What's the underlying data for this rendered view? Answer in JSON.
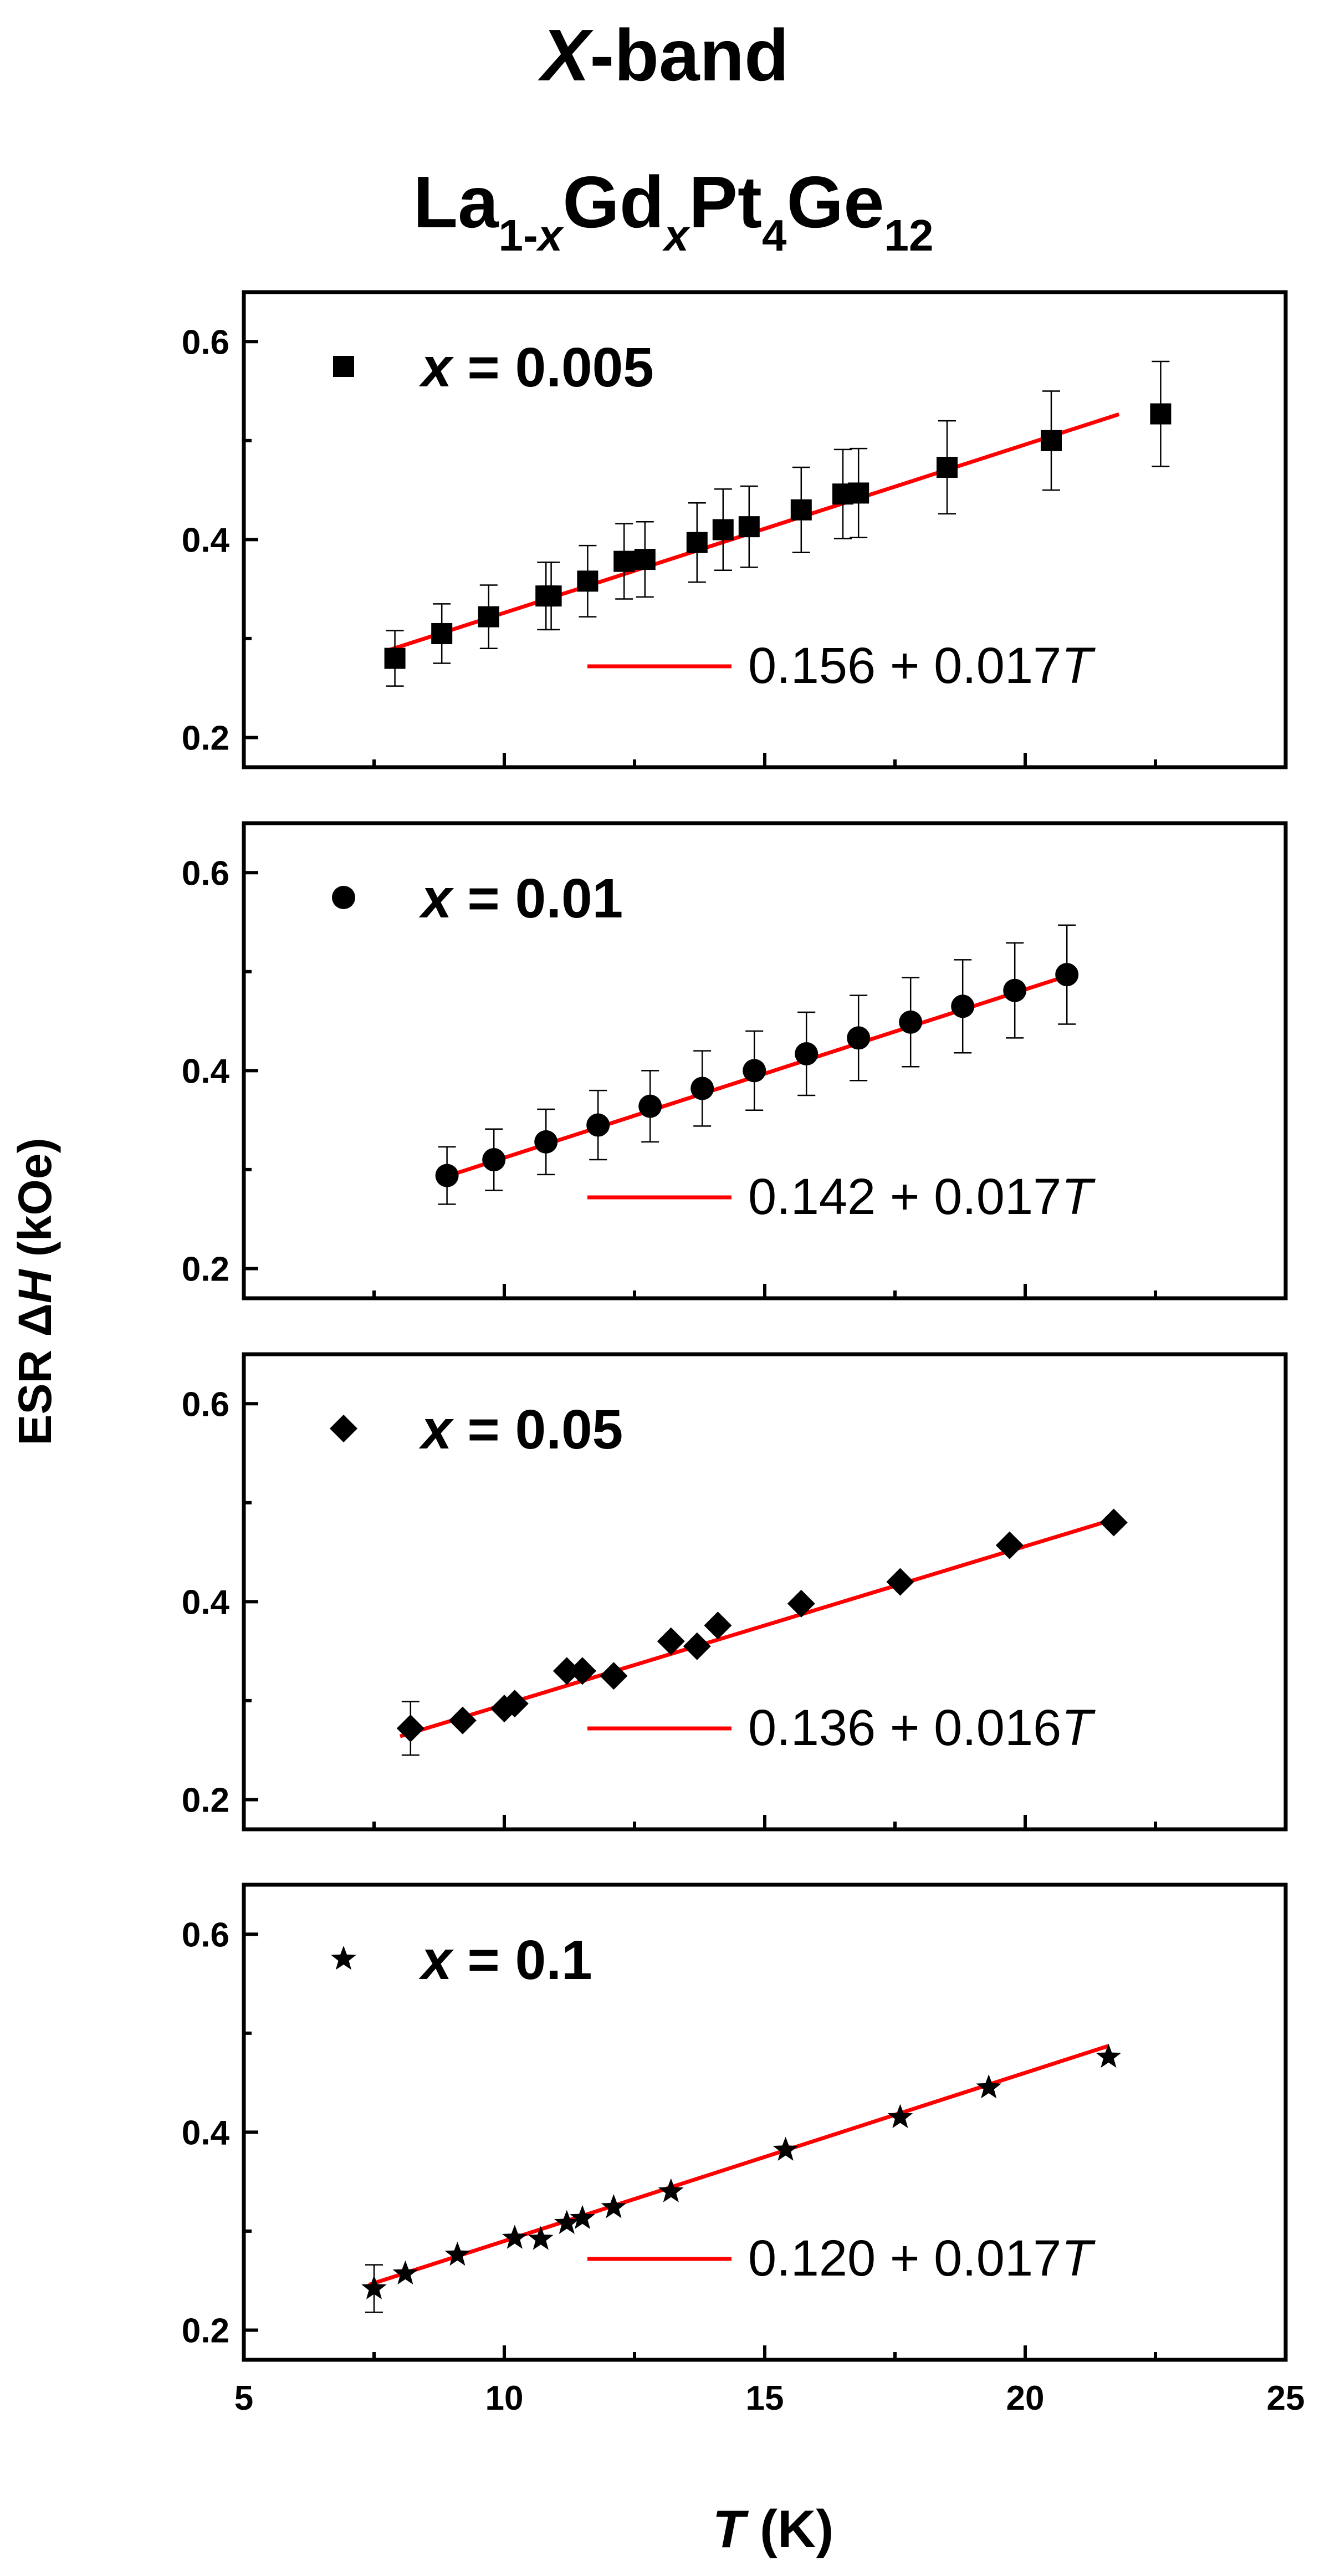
{
  "title": {
    "band": "X",
    "band_suffix": "-band",
    "compound": [
      {
        "text": "La",
        "sub": "1-x"
      },
      {
        "text": "Gd",
        "sub": "x"
      },
      {
        "text": "Pt",
        "sub": "4"
      },
      {
        "text": "Ge",
        "sub": "12"
      }
    ]
  },
  "ylabel": {
    "prefix": "ESR  Δ",
    "italic": "H",
    "suffix": " (kOe)"
  },
  "xlabel": {
    "italic": "T",
    "suffix": " (K)"
  },
  "chart_data": [
    {
      "type": "scatter",
      "panel": "top",
      "marker": "square",
      "legend": {
        "var": "x",
        "rest": " = 0.005"
      },
      "xlim": [
        5,
        25
      ],
      "ylim": [
        0.17,
        0.65
      ],
      "yticks": [
        0.2,
        0.4,
        0.6
      ],
      "xticks": [
        5,
        10,
        15,
        20,
        25
      ],
      "x": [
        7.9,
        8.8,
        9.7,
        10.8,
        10.9,
        11.6,
        12.3,
        12.7,
        13.7,
        14.2,
        14.7,
        15.7,
        16.5,
        16.8,
        18.5,
        20.5,
        22.6
      ],
      "y": [
        0.28,
        0.305,
        0.322,
        0.343,
        0.343,
        0.358,
        0.378,
        0.38,
        0.397,
        0.41,
        0.413,
        0.43,
        0.446,
        0.447,
        0.473,
        0.5,
        0.527
      ],
      "yerr": [
        0.028,
        0.03,
        0.032,
        0.034,
        0.034,
        0.036,
        0.038,
        0.038,
        0.04,
        0.041,
        0.041,
        0.043,
        0.045,
        0.045,
        0.047,
        0.05,
        0.053
      ],
      "fit": {
        "intercept": 0.156,
        "slope": 0.017,
        "x_range": [
          7.8,
          21.8
        ],
        "label": "0.156 + 0.017",
        "label_var": "T",
        "color": "#ff0000"
      }
    },
    {
      "type": "scatter",
      "panel": "second",
      "marker": "circle",
      "legend": {
        "var": "x",
        "rest": " = 0.01"
      },
      "xlim": [
        5,
        25
      ],
      "ylim": [
        0.17,
        0.65
      ],
      "yticks": [
        0.2,
        0.4,
        0.6
      ],
      "xticks": [
        5,
        10,
        15,
        20,
        25
      ],
      "x": [
        8.9,
        9.8,
        10.8,
        11.8,
        12.8,
        13.8,
        14.8,
        15.8,
        16.8,
        17.8,
        18.8,
        19.8,
        20.8
      ],
      "y": [
        0.294,
        0.31,
        0.328,
        0.345,
        0.364,
        0.382,
        0.4,
        0.417,
        0.433,
        0.449,
        0.465,
        0.481,
        0.497
      ],
      "yerr": [
        0.029,
        0.031,
        0.033,
        0.035,
        0.036,
        0.038,
        0.04,
        0.042,
        0.043,
        0.045,
        0.047,
        0.048,
        0.05
      ],
      "fit": {
        "intercept": 0.142,
        "slope": 0.017,
        "x_range": [
          8.8,
          21.0
        ],
        "label": "0.142 + 0.017",
        "label_var": "T",
        "color": "#ff0000"
      }
    },
    {
      "type": "scatter",
      "panel": "third",
      "marker": "diamond",
      "legend": {
        "var": "x",
        "rest": " = 0.05"
      },
      "xlim": [
        5,
        25
      ],
      "ylim": [
        0.17,
        0.65
      ],
      "yticks": [
        0.2,
        0.4,
        0.6
      ],
      "xticks": [
        5,
        10,
        15,
        20,
        25
      ],
      "x": [
        8.2,
        9.2,
        10.0,
        10.2,
        11.2,
        11.5,
        12.1,
        13.2,
        13.7,
        14.1,
        15.7,
        17.6,
        19.7,
        21.7
      ],
      "y": [
        0.272,
        0.28,
        0.292,
        0.297,
        0.33,
        0.33,
        0.325,
        0.36,
        0.355,
        0.376,
        0.398,
        0.42,
        0.457,
        0.48
      ],
      "yerr": [
        0.027,
        null,
        null,
        null,
        null,
        null,
        null,
        null,
        null,
        null,
        null,
        null,
        null,
        null
      ],
      "fit": {
        "intercept": 0.136,
        "slope": 0.016,
        "x_range": [
          8.0,
          21.7
        ],
        "label": "0.136 + 0.016",
        "label_var": "T",
        "color": "#ff0000"
      }
    },
    {
      "type": "scatter",
      "panel": "bottom",
      "marker": "star",
      "legend": {
        "var": "x",
        "rest": " = 0.1"
      },
      "xlim": [
        5,
        25
      ],
      "ylim": [
        0.17,
        0.65
      ],
      "yticks": [
        0.2,
        0.4,
        0.6
      ],
      "xticks": [
        5,
        10,
        15,
        20,
        25
      ],
      "x": [
        7.5,
        8.1,
        9.1,
        10.2,
        10.7,
        11.2,
        11.5,
        12.1,
        13.2,
        15.4,
        17.6,
        19.3,
        21.6
      ],
      "y": [
        0.242,
        0.257,
        0.276,
        0.293,
        0.292,
        0.308,
        0.313,
        0.324,
        0.34,
        0.382,
        0.415,
        0.445,
        0.476
      ],
      "yerr": [
        0.024,
        null,
        null,
        null,
        null,
        null,
        null,
        null,
        null,
        null,
        null,
        null,
        null
      ],
      "fit": {
        "intercept": 0.12,
        "slope": 0.017,
        "x_range": [
          7.4,
          21.6
        ],
        "label": "0.120 + 0.017",
        "label_var": "T",
        "color": "#ff0000"
      }
    }
  ]
}
